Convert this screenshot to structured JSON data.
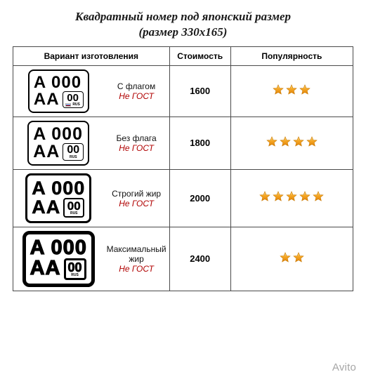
{
  "title": "Квадратный номер под японский размер",
  "subtitle": "(размер 330x165)",
  "columns": {
    "variant": "Вариант изготовления",
    "price": "Стоимость",
    "popularity": "Популярность"
  },
  "plate_sample": {
    "top": "A 000",
    "letters": "AA",
    "region_code": "00",
    "rus": "RUS"
  },
  "rows": [
    {
      "variant": "С флагом",
      "gost": "Не ГОСТ",
      "price": "1600",
      "stars": 3,
      "bold": "b1",
      "flag": true
    },
    {
      "variant": "Без флага",
      "gost": "Не ГОСТ",
      "price": "1800",
      "stars": 4,
      "bold": "b2",
      "flag": false
    },
    {
      "variant": "Строгий жир",
      "gost": "Не ГОСТ",
      "price": "2000",
      "stars": 5,
      "bold": "b3",
      "flag": false
    },
    {
      "variant": "Максимальный жир",
      "gost": "Не ГОСТ",
      "price": "2400",
      "stars": 2,
      "bold": "b4",
      "flag": false
    }
  ],
  "watermark": "Avito",
  "colors": {
    "star_fill": "#f5a623",
    "star_stroke": "#c77800",
    "gost": "#b00000",
    "border": "#4a4a4a"
  }
}
